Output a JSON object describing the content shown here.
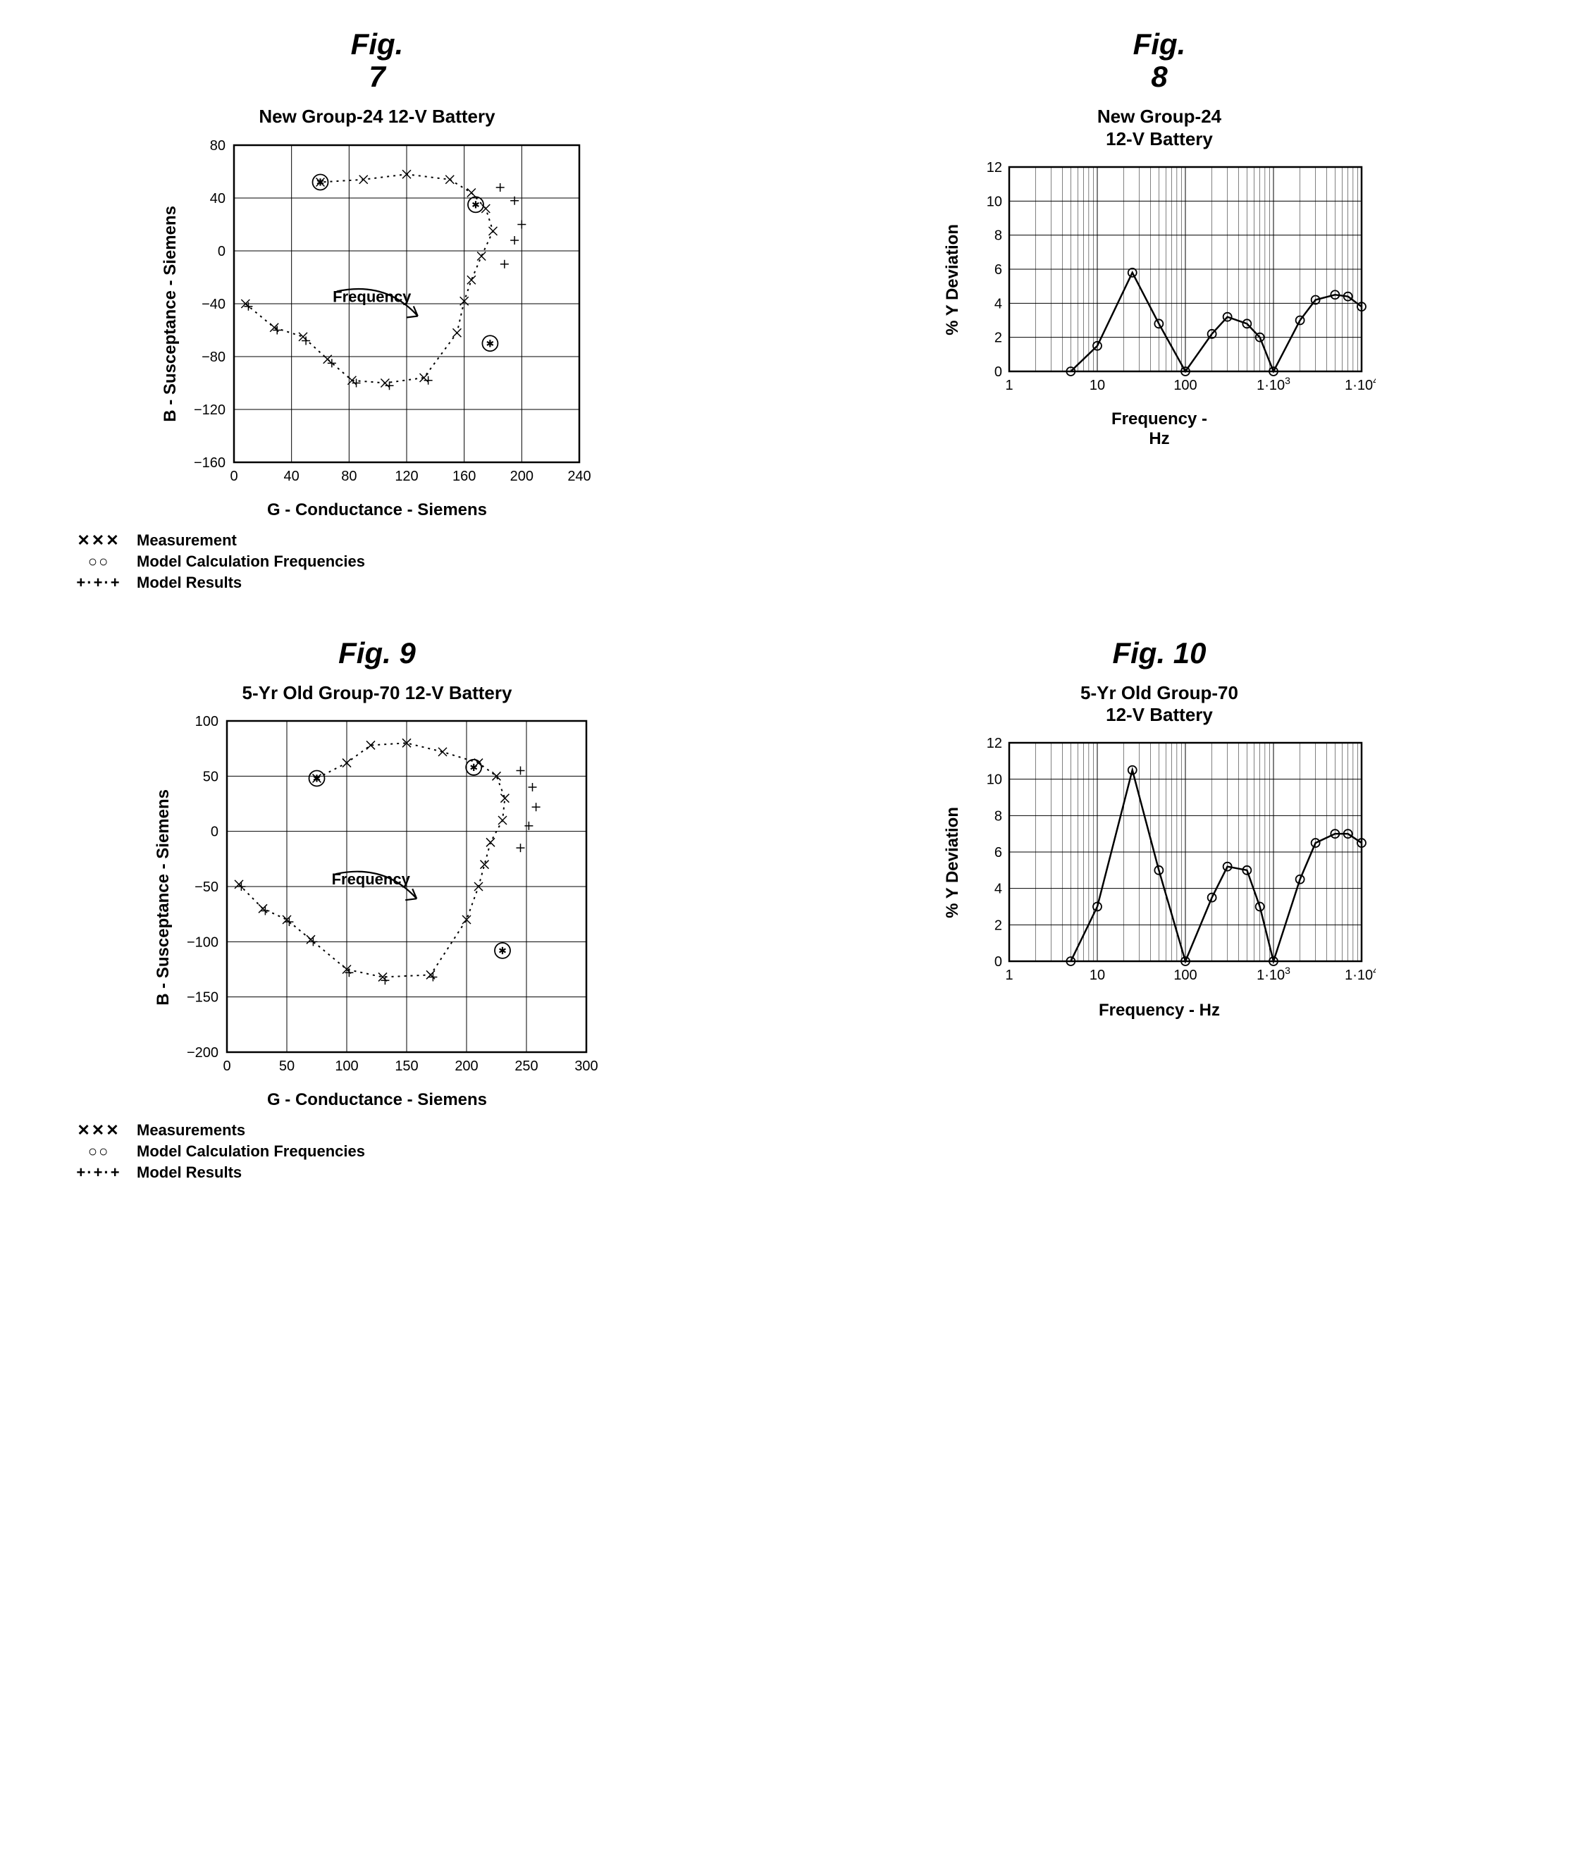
{
  "fig7": {
    "type": "scatter",
    "fig_label_1": "Fig.",
    "fig_label_2": "7",
    "title": "New Group-24 12-V Battery",
    "xlabel": "G - Conductance - Siemens",
    "ylabel": "B - Susceptance - Siemens",
    "xlim": [
      0,
      240
    ],
    "xtick_step": 40,
    "ylim": [
      -160,
      80
    ],
    "ytick_step": 40,
    "freq_label": "Frequency",
    "measurement": [
      [
        8,
        -40
      ],
      [
        28,
        -58
      ],
      [
        48,
        -65
      ],
      [
        65,
        -82
      ],
      [
        82,
        -98
      ],
      [
        105,
        -100
      ],
      [
        132,
        -96
      ],
      [
        155,
        -62
      ],
      [
        160,
        -38
      ],
      [
        165,
        -22
      ],
      [
        172,
        -4
      ],
      [
        180,
        15
      ],
      [
        175,
        32
      ],
      [
        165,
        44
      ],
      [
        150,
        54
      ],
      [
        120,
        58
      ],
      [
        90,
        54
      ],
      [
        60,
        52
      ]
    ],
    "calc_freq": [
      [
        60,
        52
      ],
      [
        168,
        35
      ],
      [
        178,
        -70
      ]
    ],
    "model_results": [
      [
        10,
        -42
      ],
      [
        30,
        -60
      ],
      [
        50,
        -68
      ],
      [
        68,
        -85
      ],
      [
        85,
        -100
      ],
      [
        108,
        -102
      ],
      [
        135,
        -98
      ],
      [
        188,
        -10
      ],
      [
        195,
        8
      ],
      [
        200,
        20
      ],
      [
        195,
        38
      ],
      [
        185,
        48
      ]
    ],
    "legend": {
      "meas": "Measurement",
      "calc": "Model Calculation Frequencies",
      "model": "Model Results"
    }
  },
  "fig8": {
    "type": "line",
    "fig_label_1": "Fig.",
    "fig_label_2": "8",
    "title_1": "New Group-24",
    "title_2": "12-V Battery",
    "xlabel": "Frequency -",
    "xlabel2": "Hz",
    "ylabel": "% Y Deviation",
    "xlim": [
      1,
      10000
    ],
    "xscale": "log",
    "ylim": [
      0,
      12
    ],
    "ytick_step": 2,
    "points": [
      [
        5,
        0
      ],
      [
        10,
        1.5
      ],
      [
        25,
        5.8
      ],
      [
        50,
        2.8
      ],
      [
        100,
        0
      ],
      [
        200,
        2.2
      ],
      [
        300,
        3.2
      ],
      [
        500,
        2.8
      ],
      [
        700,
        2.0
      ],
      [
        1000,
        0
      ],
      [
        2000,
        3.0
      ],
      [
        3000,
        4.2
      ],
      [
        5000,
        4.5
      ],
      [
        7000,
        4.4
      ],
      [
        10000,
        3.8
      ]
    ]
  },
  "fig9": {
    "type": "scatter",
    "fig_label": "Fig. 9",
    "title": "5-Yr Old Group-70 12-V Battery",
    "xlabel": "G - Conductance - Siemens",
    "ylabel": "B - Susceptance - Siemens",
    "xlim": [
      0,
      300
    ],
    "xtick_step": 50,
    "ylim": [
      -200,
      100
    ],
    "ytick_step": 50,
    "freq_label": "Frequency",
    "measurement": [
      [
        10,
        -48
      ],
      [
        30,
        -70
      ],
      [
        50,
        -80
      ],
      [
        70,
        -98
      ],
      [
        100,
        -125
      ],
      [
        130,
        -132
      ],
      [
        170,
        -130
      ],
      [
        200,
        -80
      ],
      [
        210,
        -50
      ],
      [
        215,
        -30
      ],
      [
        220,
        -10
      ],
      [
        230,
        10
      ],
      [
        232,
        30
      ],
      [
        225,
        50
      ],
      [
        210,
        62
      ],
      [
        180,
        72
      ],
      [
        150,
        80
      ],
      [
        120,
        78
      ],
      [
        100,
        62
      ],
      [
        75,
        48
      ]
    ],
    "calc_freq": [
      [
        75,
        48
      ],
      [
        206,
        58
      ],
      [
        230,
        -108
      ]
    ],
    "model_results": [
      [
        12,
        -50
      ],
      [
        32,
        -72
      ],
      [
        52,
        -82
      ],
      [
        72,
        -100
      ],
      [
        102,
        -128
      ],
      [
        132,
        -135
      ],
      [
        172,
        -132
      ],
      [
        245,
        -15
      ],
      [
        252,
        5
      ],
      [
        258,
        22
      ],
      [
        255,
        40
      ],
      [
        245,
        55
      ]
    ],
    "legend": {
      "meas": "Measurements",
      "calc": "Model Calculation Frequencies",
      "model": "Model Results"
    }
  },
  "fig10": {
    "type": "line",
    "fig_label": "Fig. 10",
    "title_1": "5-Yr Old Group-70",
    "title_2": "12-V Battery",
    "xlabel": "Frequency - Hz",
    "ylabel": "% Y Deviation",
    "xlim": [
      1,
      10000
    ],
    "xscale": "log",
    "ylim": [
      0,
      12
    ],
    "ytick_step": 2,
    "points": [
      [
        5,
        0
      ],
      [
        10,
        3.0
      ],
      [
        25,
        10.5
      ],
      [
        50,
        5.0
      ],
      [
        100,
        0
      ],
      [
        200,
        3.5
      ],
      [
        300,
        5.2
      ],
      [
        500,
        5.0
      ],
      [
        700,
        3.0
      ],
      [
        1000,
        0
      ],
      [
        2000,
        4.5
      ],
      [
        3000,
        6.5
      ],
      [
        5000,
        7.0
      ],
      [
        7000,
        7.0
      ],
      [
        10000,
        6.5
      ]
    ]
  },
  "colors": {
    "stroke": "#000000",
    "bg": "#ffffff"
  }
}
